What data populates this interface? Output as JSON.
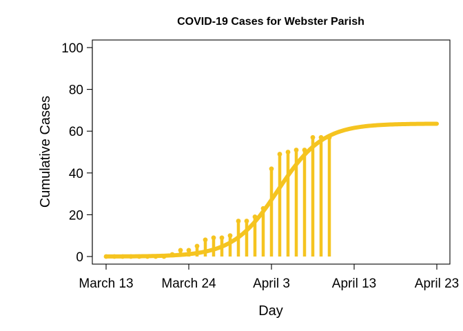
{
  "chart_data": {
    "type": "line",
    "title": "COVID-19 Cases for Webster Parish",
    "xlabel": "Day",
    "ylabel": "Cumulative Cases",
    "xlim": [
      0,
      40
    ],
    "ylim": [
      0,
      100
    ],
    "x_ticks": [
      {
        "value": 0,
        "label": "March 13"
      },
      {
        "value": 10,
        "label": "March 24"
      },
      {
        "value": 20,
        "label": "April 3"
      },
      {
        "value": 30,
        "label": "April 13"
      },
      {
        "value": 40,
        "label": "April 23"
      }
    ],
    "y_ticks": [
      0,
      20,
      40,
      60,
      80,
      100
    ],
    "grid": false,
    "color": "#F5C420",
    "series": [
      {
        "type": "lollipop",
        "x": [
          0,
          1,
          2,
          3,
          4,
          5,
          6,
          7,
          8,
          9,
          10,
          11,
          12,
          13,
          14,
          15,
          16,
          17,
          18,
          19,
          20,
          21,
          22,
          23,
          24,
          25,
          26,
          27
        ],
        "values": [
          0,
          0,
          0,
          0,
          0,
          0,
          0,
          0,
          1,
          3,
          3,
          5,
          8,
          9,
          9,
          10,
          17,
          17,
          19,
          23,
          42,
          49,
          50,
          51,
          51,
          57,
          57,
          57
        ]
      },
      {
        "type": "fitted-curve",
        "model": "logistic",
        "asymptote": 63.6,
        "midpoint": 20.8,
        "rate": 0.37,
        "x_range": [
          0,
          40
        ]
      }
    ]
  }
}
